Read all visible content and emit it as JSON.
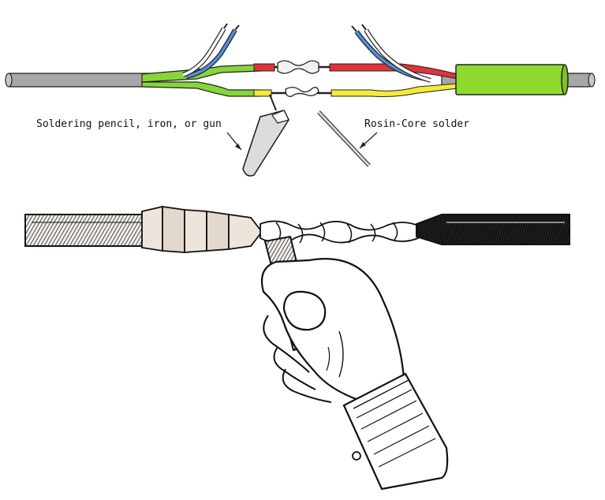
{
  "labels": {
    "soldering_tool": "Soldering pencil, iron, or gun",
    "solder": "Rosin-Core solder"
  },
  "colors": {
    "cable_gray": "#a7a7a7",
    "insulation_green": "#86d63a",
    "wire_red": "#e0333b",
    "wire_yellow": "#f4ea3a",
    "wire_blue": "#4f8fd9",
    "wire_white": "#ffffff",
    "heat_shrink_green": "#8ddb2e",
    "ink": "#111111"
  },
  "icons": {
    "arrow_tool": "arrow-to-soldering-tool-icon",
    "arrow_solder": "arrow-to-solder-icon"
  }
}
